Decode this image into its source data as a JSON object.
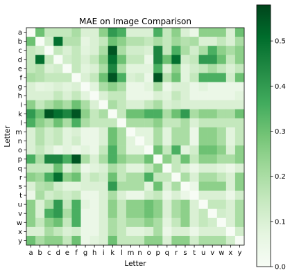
{
  "chart_data": {
    "type": "heatmap",
    "title": "MAE on Image Comparison",
    "xlabel": "Letter",
    "ylabel": "Letter",
    "x_categories": [
      "a",
      "b",
      "c",
      "d",
      "e",
      "f",
      "g",
      "h",
      "i",
      "k",
      "l",
      "m",
      "n",
      "o",
      "p",
      "q",
      "r",
      "s",
      "t",
      "u",
      "v",
      "w",
      "x",
      "y"
    ],
    "y_categories": [
      "a",
      "b",
      "c",
      "d",
      "e",
      "f",
      "g",
      "h",
      "i",
      "k",
      "l",
      "m",
      "n",
      "o",
      "p",
      "q",
      "r",
      "s",
      "t",
      "u",
      "v",
      "w",
      "x",
      "y"
    ],
    "colormap": "Greens",
    "color_range": [
      0,
      0.58
    ],
    "colorbar_ticks": [
      "0.0",
      "0.1",
      "0.2",
      "0.3",
      "0.4",
      "0.5"
    ],
    "grid": false,
    "values": [
      [
        0.0,
        0.3,
        0.15,
        0.15,
        0.15,
        0.2,
        0.1,
        0.1,
        0.25,
        0.4,
        0.35,
        0.1,
        0.1,
        0.1,
        0.35,
        0.15,
        0.25,
        0.1,
        0.05,
        0.25,
        0.25,
        0.25,
        0.1,
        0.3
      ],
      [
        0.3,
        0.0,
        0.12,
        0.5,
        0.18,
        0.18,
        0.07,
        0.1,
        0.15,
        0.3,
        0.25,
        0.18,
        0.18,
        0.15,
        0.2,
        0.15,
        0.22,
        0.18,
        0.2,
        0.1,
        0.1,
        0.15,
        0.1,
        0.2
      ],
      [
        0.15,
        0.12,
        0.0,
        0.15,
        0.1,
        0.15,
        0.08,
        0.1,
        0.2,
        0.55,
        0.2,
        0.12,
        0.12,
        0.1,
        0.45,
        0.15,
        0.35,
        0.2,
        0.12,
        0.2,
        0.35,
        0.25,
        0.2,
        0.25
      ],
      [
        0.15,
        0.5,
        0.15,
        0.0,
        0.12,
        0.15,
        0.1,
        0.15,
        0.25,
        0.5,
        0.3,
        0.15,
        0.15,
        0.05,
        0.45,
        0.3,
        0.5,
        0.12,
        0.15,
        0.4,
        0.4,
        0.3,
        0.15,
        0.25
      ],
      [
        0.15,
        0.18,
        0.1,
        0.12,
        0.0,
        0.15,
        0.08,
        0.1,
        0.2,
        0.45,
        0.2,
        0.08,
        0.08,
        0.08,
        0.35,
        0.1,
        0.25,
        0.08,
        0.12,
        0.15,
        0.2,
        0.15,
        0.1,
        0.15
      ],
      [
        0.2,
        0.18,
        0.15,
        0.15,
        0.15,
        0.0,
        0.1,
        0.15,
        0.3,
        0.55,
        0.35,
        0.1,
        0.12,
        0.05,
        0.55,
        0.18,
        0.3,
        0.08,
        0.15,
        0.35,
        0.35,
        0.35,
        0.12,
        0.3
      ],
      [
        0.1,
        0.07,
        0.08,
        0.1,
        0.08,
        0.1,
        0.0,
        0.08,
        0.2,
        0.25,
        0.2,
        0.05,
        0.05,
        0.08,
        0.2,
        0.05,
        0.1,
        0.1,
        0.05,
        0.08,
        0.05,
        0.05,
        0.05,
        0.05
      ],
      [
        0.1,
        0.1,
        0.1,
        0.15,
        0.1,
        0.15,
        0.08,
        0.0,
        0.1,
        0.15,
        0.15,
        0.05,
        0.05,
        0.05,
        0.1,
        0.08,
        0.15,
        0.1,
        0.05,
        0.05,
        0.05,
        0.05,
        0.05,
        0.08
      ],
      [
        0.25,
        0.15,
        0.2,
        0.25,
        0.2,
        0.3,
        0.2,
        0.1,
        0.0,
        0.2,
        0.15,
        0.1,
        0.1,
        0.15,
        0.2,
        0.1,
        0.12,
        0.1,
        0.1,
        0.1,
        0.1,
        0.1,
        0.1,
        0.1
      ],
      [
        0.4,
        0.3,
        0.55,
        0.5,
        0.45,
        0.55,
        0.25,
        0.15,
        0.2,
        0.0,
        0.15,
        0.3,
        0.3,
        0.35,
        0.35,
        0.2,
        0.3,
        0.4,
        0.2,
        0.25,
        0.25,
        0.2,
        0.2,
        0.3
      ],
      [
        0.35,
        0.25,
        0.2,
        0.3,
        0.2,
        0.35,
        0.2,
        0.15,
        0.15,
        0.15,
        0.0,
        0.2,
        0.2,
        0.2,
        0.25,
        0.15,
        0.15,
        0.2,
        0.1,
        0.15,
        0.15,
        0.15,
        0.15,
        0.15
      ],
      [
        0.1,
        0.18,
        0.12,
        0.15,
        0.08,
        0.1,
        0.05,
        0.05,
        0.1,
        0.3,
        0.2,
        0.0,
        0.08,
        0.08,
        0.2,
        0.08,
        0.2,
        0.2,
        0.05,
        0.25,
        0.25,
        0.2,
        0.08,
        0.15
      ],
      [
        0.1,
        0.18,
        0.12,
        0.15,
        0.08,
        0.12,
        0.05,
        0.05,
        0.1,
        0.3,
        0.2,
        0.08,
        0.0,
        0.08,
        0.2,
        0.08,
        0.2,
        0.2,
        0.05,
        0.25,
        0.25,
        0.2,
        0.08,
        0.15
      ],
      [
        0.1,
        0.15,
        0.1,
        0.05,
        0.08,
        0.05,
        0.08,
        0.05,
        0.15,
        0.35,
        0.2,
        0.08,
        0.08,
        0.0,
        0.3,
        0.15,
        0.35,
        0.08,
        0.12,
        0.3,
        0.3,
        0.25,
        0.1,
        0.25
      ],
      [
        0.35,
        0.2,
        0.45,
        0.45,
        0.35,
        0.55,
        0.2,
        0.1,
        0.2,
        0.35,
        0.25,
        0.2,
        0.2,
        0.3,
        0.0,
        0.25,
        0.15,
        0.3,
        0.15,
        0.25,
        0.25,
        0.2,
        0.2,
        0.25
      ],
      [
        0.15,
        0.15,
        0.15,
        0.3,
        0.1,
        0.18,
        0.05,
        0.08,
        0.1,
        0.2,
        0.15,
        0.08,
        0.08,
        0.15,
        0.25,
        0.0,
        0.15,
        0.1,
        0.05,
        0.1,
        0.1,
        0.08,
        0.05,
        0.1
      ],
      [
        0.25,
        0.22,
        0.35,
        0.5,
        0.25,
        0.3,
        0.1,
        0.15,
        0.12,
        0.3,
        0.15,
        0.2,
        0.2,
        0.35,
        0.15,
        0.15,
        0.0,
        0.2,
        0.1,
        0.2,
        0.2,
        0.15,
        0.1,
        0.25
      ],
      [
        0.1,
        0.18,
        0.2,
        0.12,
        0.08,
        0.08,
        0.1,
        0.1,
        0.1,
        0.4,
        0.2,
        0.2,
        0.2,
        0.08,
        0.3,
        0.1,
        0.2,
        0.0,
        0.05,
        0.25,
        0.25,
        0.25,
        0.1,
        0.25
      ],
      [
        0.05,
        0.2,
        0.12,
        0.15,
        0.12,
        0.15,
        0.05,
        0.05,
        0.1,
        0.2,
        0.1,
        0.05,
        0.05,
        0.12,
        0.15,
        0.05,
        0.1,
        0.05,
        0.0,
        0.1,
        0.1,
        0.1,
        0.05,
        0.12
      ],
      [
        0.25,
        0.1,
        0.2,
        0.4,
        0.15,
        0.35,
        0.08,
        0.05,
        0.1,
        0.25,
        0.15,
        0.25,
        0.25,
        0.3,
        0.25,
        0.1,
        0.2,
        0.25,
        0.1,
        0.0,
        0.15,
        0.15,
        0.1,
        0.2
      ],
      [
        0.25,
        0.1,
        0.35,
        0.4,
        0.2,
        0.35,
        0.05,
        0.05,
        0.1,
        0.25,
        0.15,
        0.25,
        0.25,
        0.3,
        0.25,
        0.1,
        0.2,
        0.25,
        0.1,
        0.15,
        0.0,
        0.12,
        0.1,
        0.2
      ],
      [
        0.25,
        0.15,
        0.25,
        0.3,
        0.15,
        0.35,
        0.05,
        0.05,
        0.1,
        0.2,
        0.15,
        0.2,
        0.2,
        0.25,
        0.2,
        0.08,
        0.15,
        0.25,
        0.1,
        0.15,
        0.12,
        0.0,
        0.1,
        0.2
      ],
      [
        0.1,
        0.1,
        0.2,
        0.15,
        0.1,
        0.12,
        0.05,
        0.05,
        0.1,
        0.2,
        0.15,
        0.08,
        0.08,
        0.1,
        0.2,
        0.05,
        0.1,
        0.1,
        0.05,
        0.1,
        0.1,
        0.1,
        0.0,
        0.12
      ],
      [
        0.3,
        0.2,
        0.25,
        0.25,
        0.15,
        0.3,
        0.05,
        0.08,
        0.1,
        0.3,
        0.15,
        0.15,
        0.15,
        0.25,
        0.25,
        0.1,
        0.25,
        0.25,
        0.12,
        0.2,
        0.2,
        0.2,
        0.12,
        0.0
      ]
    ]
  }
}
